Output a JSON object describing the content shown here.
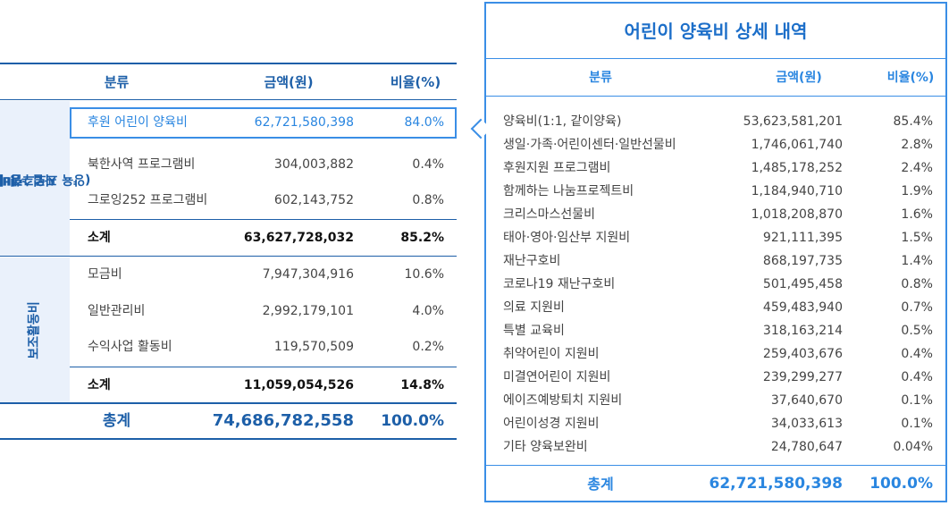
{
  "left_table": {
    "header": {
      "category": "분류",
      "amount": "금액(원)",
      "ratio": "비율(%)"
    },
    "groups": [
      {
        "label_line1": "사업수행비",
        "label_line2": "(양육 프로그램비)",
        "rows": [
          {
            "category": "후원 어린이 양육비",
            "amount": "62,721,580,398",
            "ratio": "84.0%",
            "highlighted": true
          },
          {
            "category": "북한사역 프로그램비",
            "amount": "304,003,882",
            "ratio": "0.4%"
          },
          {
            "category": "그로잉252 프로그램비",
            "amount": "602,143,752",
            "ratio": "0.8%"
          }
        ],
        "subtotal": {
          "category": "소계",
          "amount": "63,627,728,032",
          "ratio": "85.2%"
        }
      },
      {
        "label_line1": "보조활동비",
        "label_line2": "",
        "rows": [
          {
            "category": "모금비",
            "amount": "7,947,304,916",
            "ratio": "10.6%"
          },
          {
            "category": "일반관리비",
            "amount": "2,992,179,101",
            "ratio": "4.0%"
          },
          {
            "category": "수익사업 활동비",
            "amount": "119,570,509",
            "ratio": "0.2%"
          }
        ],
        "subtotal": {
          "category": "소계",
          "amount": "11,059,054,526",
          "ratio": "14.8%"
        }
      }
    ],
    "total": {
      "category": "총계",
      "amount": "74,686,782,558",
      "ratio": "100.0%"
    }
  },
  "detail_panel": {
    "title": "어린이 양육비 상세 내역",
    "header": {
      "category": "분류",
      "amount": "금액(원)",
      "ratio": "비율(%)"
    },
    "rows": [
      {
        "category": "양육비(1:1, 같이양육)",
        "amount": "53,623,581,201",
        "ratio": "85.4%"
      },
      {
        "category": "생일·가족·어린이센터·일반선물비",
        "amount": "1,746,061,740",
        "ratio": "2.8%"
      },
      {
        "category": "후원지원 프로그램비",
        "amount": "1,485,178,252",
        "ratio": "2.4%"
      },
      {
        "category": "함께하는 나눔프로젝트비",
        "amount": "1,184,940,710",
        "ratio": "1.9%"
      },
      {
        "category": "크리스마스선물비",
        "amount": "1,018,208,870",
        "ratio": "1.6%"
      },
      {
        "category": "태아·영아·임산부 지원비",
        "amount": "921,111,395",
        "ratio": "1.5%"
      },
      {
        "category": "재난구호비",
        "amount": "868,197,735",
        "ratio": "1.4%"
      },
      {
        "category": "코로나19 재난구호비",
        "amount": "501,495,458",
        "ratio": "0.8%"
      },
      {
        "category": "의료 지원비",
        "amount": "459,483,940",
        "ratio": "0.7%"
      },
      {
        "category": "특별 교육비",
        "amount": "318,163,214",
        "ratio": "0.5%"
      },
      {
        "category": "취약어린이 지원비",
        "amount": "259,403,676",
        "ratio": "0.4%"
      },
      {
        "category": "미결연어린이 지원비",
        "amount": "239,299,277",
        "ratio": "0.4%"
      },
      {
        "category": "에이즈예방퇴치 지원비",
        "amount": "37,640,670",
        "ratio": "0.1%"
      },
      {
        "category": "어린이성경 지원비",
        "amount": "34,033,613",
        "ratio": "0.1%"
      },
      {
        "category": "기타 양육보완비",
        "amount": "24,780,647",
        "ratio": "0.04%"
      }
    ],
    "total": {
      "category": "총계",
      "amount": "62,721,580,398",
      "ratio": "100.0%"
    }
  },
  "colors": {
    "primary": "#1d5fa8",
    "accent": "#3a8ee6",
    "group_bg": "#eaf1fb"
  }
}
